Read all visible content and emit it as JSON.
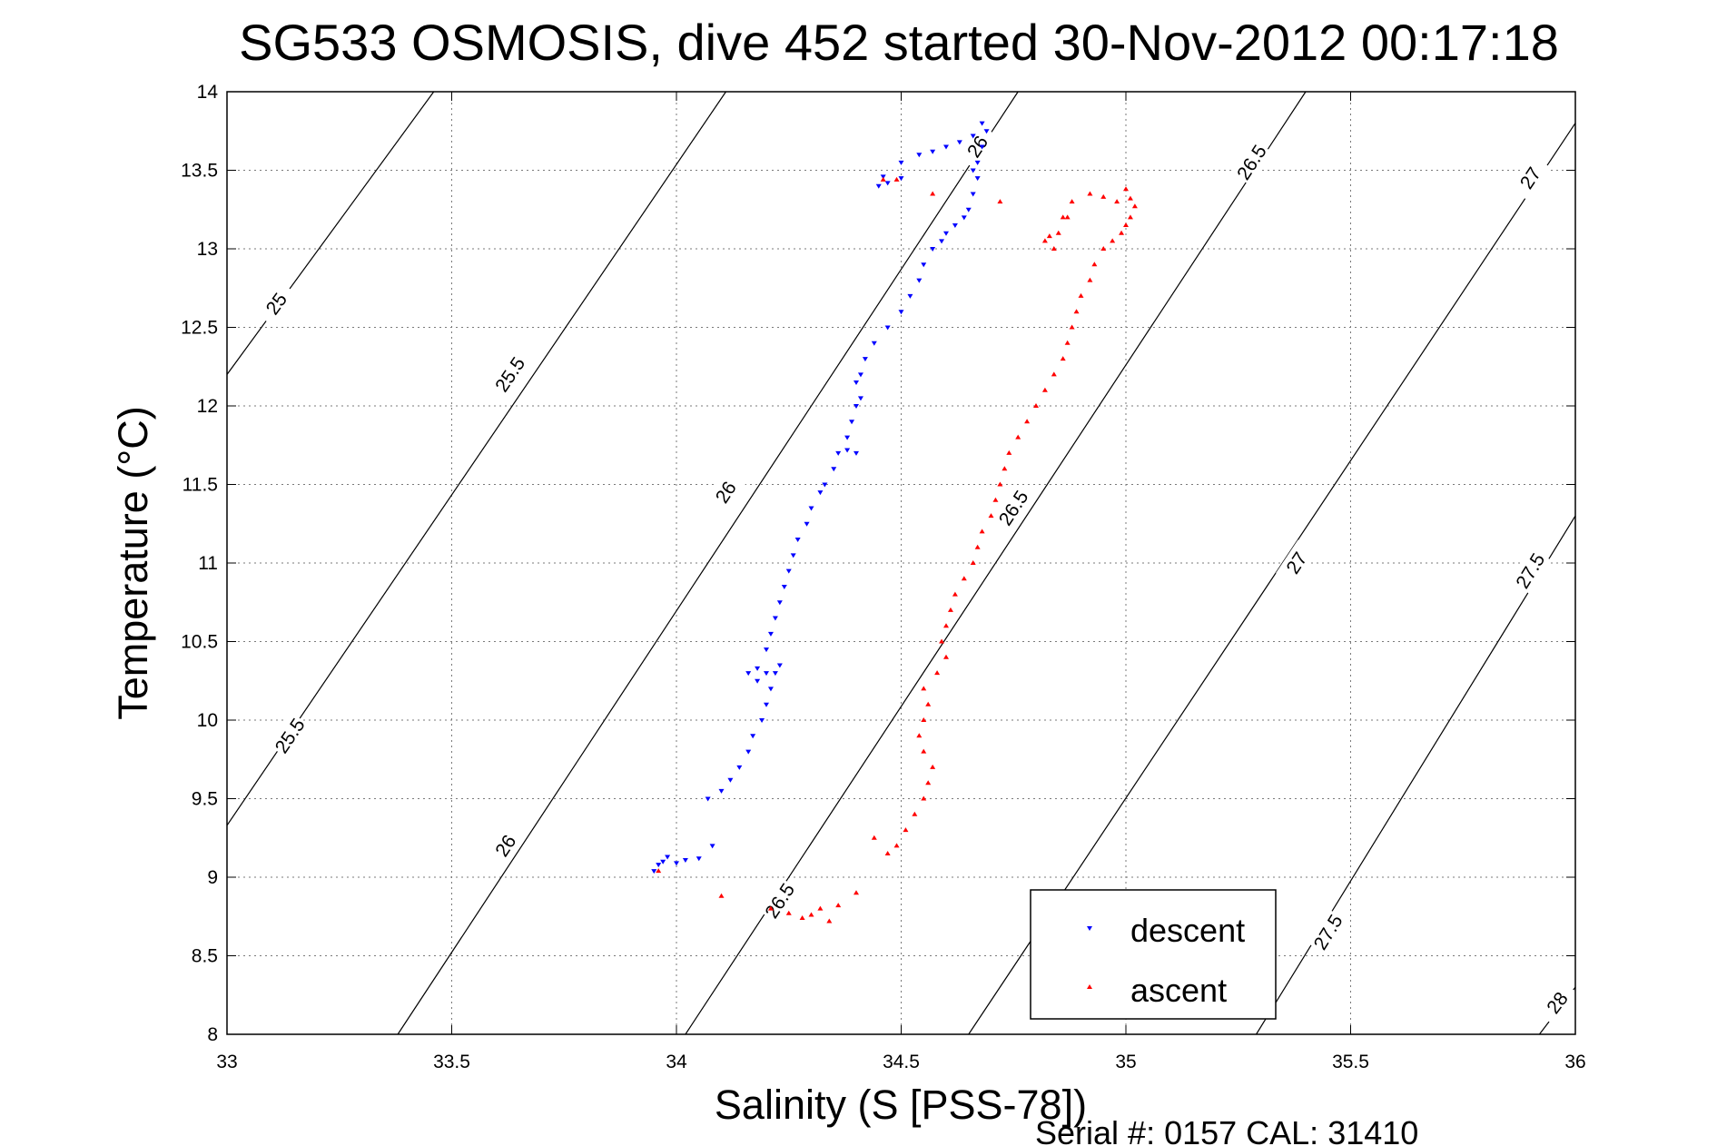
{
  "chart_data": {
    "type": "scatter",
    "title": "SG533 OSMOSIS, dive 452 started 30-Nov-2012 00:17:18",
    "xlabel": "Salinity (S [PSS-78])",
    "ylabel": "Temperature (°C)",
    "xlim": [
      33,
      36
    ],
    "ylim": [
      8,
      14
    ],
    "x_ticks": [
      "33",
      "33.5",
      "34",
      "34.5",
      "35",
      "35.5",
      "36"
    ],
    "y_ticks": [
      "8",
      "8.5",
      "9",
      "9.5",
      "10",
      "10.5",
      "11",
      "11.5",
      "12",
      "12.5",
      "13",
      "13.5",
      "14"
    ],
    "grid": true,
    "legend_position": "bottom-right",
    "footer": "Serial #: 0157  CAL: 31410",
    "colors": {
      "descent": "#0000ff",
      "ascent": "#ff0000",
      "contour": "#000000"
    },
    "density_contours": [
      {
        "level": 25.0,
        "line": [
          [
            33.0,
            12.2
          ],
          [
            33.46,
            14.0
          ]
        ],
        "labels": [
          {
            "text": "25",
            "s": 33.11,
            "t": 12.65
          }
        ]
      },
      {
        "level": 25.5,
        "line": [
          [
            33.0,
            9.33
          ],
          [
            34.11,
            14.0
          ]
        ],
        "labels": [
          {
            "text": "25.5",
            "s": 33.14,
            "t": 9.9
          },
          {
            "text": "25.5",
            "s": 33.63,
            "t": 12.2
          }
        ]
      },
      {
        "level": 26.0,
        "line": [
          [
            33.38,
            8.0
          ],
          [
            34.76,
            14.0
          ]
        ],
        "labels": [
          {
            "text": "26",
            "s": 33.62,
            "t": 9.2
          },
          {
            "text": "26",
            "s": 34.11,
            "t": 11.45
          },
          {
            "text": "26",
            "s": 34.67,
            "t": 13.65
          }
        ]
      },
      {
        "level": 26.5,
        "line": [
          [
            34.02,
            8.0
          ],
          [
            35.4,
            14.0
          ]
        ],
        "labels": [
          {
            "text": "26.5",
            "s": 34.23,
            "t": 8.85
          },
          {
            "text": "26.5",
            "s": 34.75,
            "t": 11.35
          },
          {
            "text": "26.5",
            "s": 35.28,
            "t": 13.55
          }
        ]
      },
      {
        "level": 27.0,
        "line": [
          [
            34.65,
            8.0
          ],
          [
            36.0,
            13.8
          ]
        ],
        "labels": [
          {
            "text": "27",
            "s": 34.86,
            "t": 8.75
          },
          {
            "text": "27",
            "s": 35.38,
            "t": 11.0
          },
          {
            "text": "27",
            "s": 35.9,
            "t": 13.45
          }
        ]
      },
      {
        "level": 27.5,
        "line": [
          [
            35.29,
            8.0
          ],
          [
            36.0,
            11.3
          ]
        ],
        "labels": [
          {
            "text": "27.5",
            "s": 35.45,
            "t": 8.65
          },
          {
            "text": "27.5",
            "s": 35.9,
            "t": 10.95
          }
        ]
      },
      {
        "level": 28.0,
        "line": [
          [
            35.92,
            8.0
          ],
          [
            36.0,
            8.3
          ]
        ],
        "labels": [
          {
            "text": "28",
            "s": 35.96,
            "t": 8.2
          }
        ]
      }
    ],
    "series": [
      {
        "name": "descent",
        "marker": "down-triangle",
        "points": [
          [
            33.95,
            9.04
          ],
          [
            33.96,
            9.08
          ],
          [
            33.97,
            9.1
          ],
          [
            33.98,
            9.13
          ],
          [
            34.0,
            9.09
          ],
          [
            34.02,
            9.11
          ],
          [
            34.05,
            9.12
          ],
          [
            34.08,
            9.2
          ],
          [
            34.07,
            9.5
          ],
          [
            34.1,
            9.55
          ],
          [
            34.12,
            9.62
          ],
          [
            34.14,
            9.7
          ],
          [
            34.16,
            9.8
          ],
          [
            34.17,
            9.9
          ],
          [
            34.19,
            10.0
          ],
          [
            34.2,
            10.1
          ],
          [
            34.21,
            10.2
          ],
          [
            34.2,
            10.3
          ],
          [
            34.18,
            10.33
          ],
          [
            34.16,
            10.3
          ],
          [
            34.18,
            10.25
          ],
          [
            34.22,
            10.3
          ],
          [
            34.23,
            10.35
          ],
          [
            34.2,
            10.45
          ],
          [
            34.21,
            10.55
          ],
          [
            34.22,
            10.65
          ],
          [
            34.23,
            10.75
          ],
          [
            34.24,
            10.85
          ],
          [
            34.25,
            10.95
          ],
          [
            34.26,
            11.05
          ],
          [
            34.27,
            11.15
          ],
          [
            34.29,
            11.25
          ],
          [
            34.3,
            11.35
          ],
          [
            34.32,
            11.45
          ],
          [
            34.33,
            11.5
          ],
          [
            34.35,
            11.6
          ],
          [
            34.36,
            11.7
          ],
          [
            34.38,
            11.72
          ],
          [
            34.4,
            11.7
          ],
          [
            34.38,
            11.8
          ],
          [
            34.39,
            11.9
          ],
          [
            34.4,
            12.0
          ],
          [
            34.41,
            12.05
          ],
          [
            34.4,
            12.15
          ],
          [
            34.41,
            12.2
          ],
          [
            34.42,
            12.3
          ],
          [
            34.44,
            12.4
          ],
          [
            34.47,
            12.5
          ],
          [
            34.5,
            12.6
          ],
          [
            34.52,
            12.7
          ],
          [
            34.54,
            12.8
          ],
          [
            34.55,
            12.9
          ],
          [
            34.57,
            13.0
          ],
          [
            34.59,
            13.05
          ],
          [
            34.6,
            13.1
          ],
          [
            34.62,
            13.15
          ],
          [
            34.64,
            13.2
          ],
          [
            34.65,
            13.25
          ],
          [
            34.66,
            13.35
          ],
          [
            34.67,
            13.45
          ],
          [
            34.66,
            13.5
          ],
          [
            34.67,
            13.55
          ],
          [
            34.68,
            13.65
          ],
          [
            34.69,
            13.75
          ],
          [
            34.68,
            13.8
          ],
          [
            34.66,
            13.72
          ],
          [
            34.63,
            13.68
          ],
          [
            34.6,
            13.65
          ],
          [
            34.57,
            13.62
          ],
          [
            34.54,
            13.6
          ],
          [
            34.5,
            13.55
          ],
          [
            34.5,
            13.45
          ],
          [
            34.47,
            13.42
          ],
          [
            34.45,
            13.4
          ],
          [
            34.46,
            13.46
          ]
        ]
      },
      {
        "name": "ascent",
        "marker": "up-triangle",
        "points": [
          [
            33.96,
            9.04
          ],
          [
            34.1,
            8.88
          ],
          [
            34.21,
            8.8
          ],
          [
            34.25,
            8.77
          ],
          [
            34.28,
            8.74
          ],
          [
            34.3,
            8.76
          ],
          [
            34.32,
            8.8
          ],
          [
            34.34,
            8.72
          ],
          [
            34.36,
            8.82
          ],
          [
            34.4,
            8.9
          ],
          [
            34.44,
            9.25
          ],
          [
            34.47,
            9.15
          ],
          [
            34.49,
            9.2
          ],
          [
            34.51,
            9.3
          ],
          [
            34.53,
            9.4
          ],
          [
            34.55,
            9.5
          ],
          [
            34.56,
            9.6
          ],
          [
            34.57,
            9.7
          ],
          [
            34.55,
            9.8
          ],
          [
            34.54,
            9.9
          ],
          [
            34.55,
            10.0
          ],
          [
            34.56,
            10.1
          ],
          [
            34.55,
            10.2
          ],
          [
            34.58,
            10.3
          ],
          [
            34.6,
            10.4
          ],
          [
            34.59,
            10.5
          ],
          [
            34.6,
            10.6
          ],
          [
            34.61,
            10.7
          ],
          [
            34.62,
            10.8
          ],
          [
            34.64,
            10.9
          ],
          [
            34.66,
            11.0
          ],
          [
            34.67,
            11.1
          ],
          [
            34.68,
            11.2
          ],
          [
            34.7,
            11.3
          ],
          [
            34.71,
            11.4
          ],
          [
            34.72,
            11.5
          ],
          [
            34.73,
            11.6
          ],
          [
            34.74,
            11.7
          ],
          [
            34.76,
            11.8
          ],
          [
            34.78,
            11.9
          ],
          [
            34.8,
            12.0
          ],
          [
            34.82,
            12.1
          ],
          [
            34.84,
            12.2
          ],
          [
            34.86,
            12.3
          ],
          [
            34.87,
            12.4
          ],
          [
            34.88,
            12.5
          ],
          [
            34.89,
            12.6
          ],
          [
            34.9,
            12.7
          ],
          [
            34.92,
            12.8
          ],
          [
            34.93,
            12.9
          ],
          [
            34.95,
            13.0
          ],
          [
            34.97,
            13.05
          ],
          [
            34.99,
            13.1
          ],
          [
            35.0,
            13.15
          ],
          [
            35.01,
            13.2
          ],
          [
            35.02,
            13.27
          ],
          [
            35.01,
            13.32
          ],
          [
            35.0,
            13.38
          ],
          [
            34.98,
            13.3
          ],
          [
            34.95,
            13.33
          ],
          [
            34.92,
            13.35
          ],
          [
            34.88,
            13.3
          ],
          [
            34.86,
            13.2
          ],
          [
            34.85,
            13.1
          ],
          [
            34.83,
            13.08
          ],
          [
            34.82,
            13.05
          ],
          [
            34.84,
            13.0
          ],
          [
            34.87,
            13.2
          ],
          [
            34.72,
            13.3
          ],
          [
            34.57,
            13.35
          ],
          [
            34.46,
            13.44
          ],
          [
            34.49,
            13.44
          ]
        ]
      }
    ]
  }
}
